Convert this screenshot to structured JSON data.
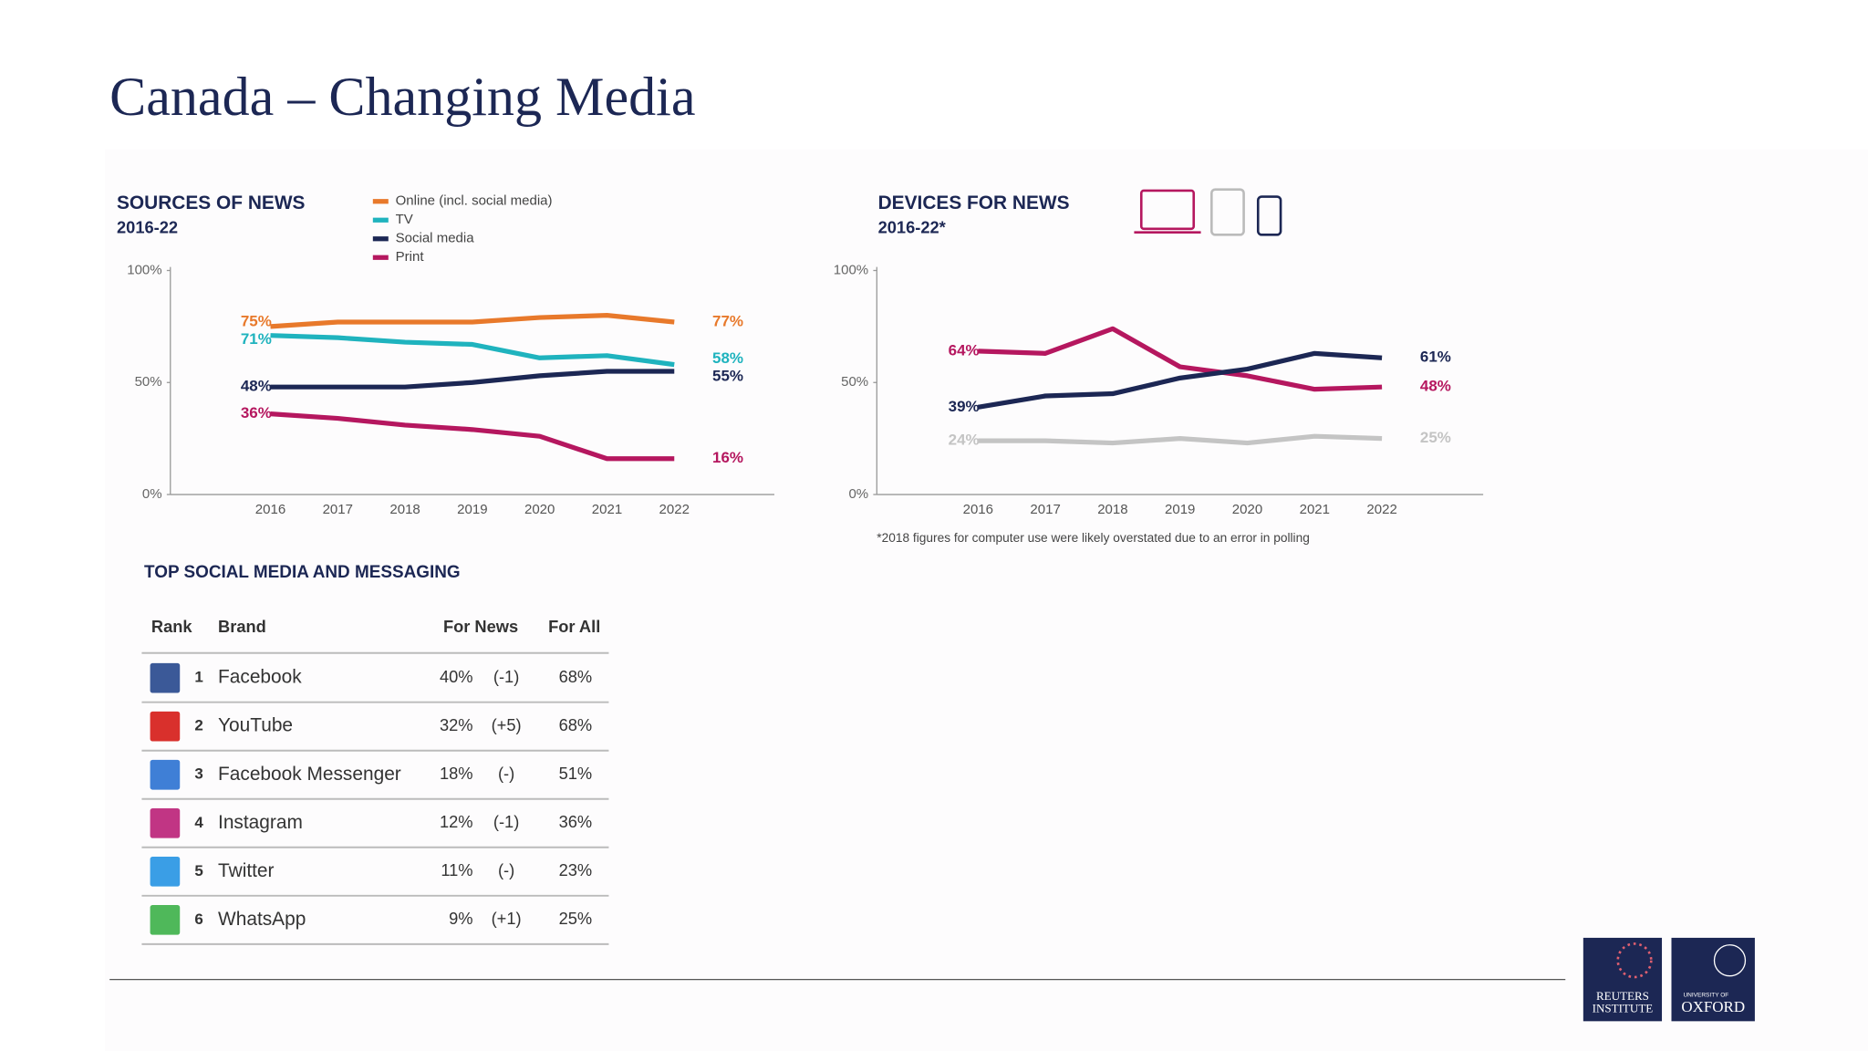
{
  "title": "Canada – Changing Media",
  "chart_data": [
    {
      "type": "line",
      "title": "SOURCES OF NEWS",
      "subtitle": "2016-22",
      "categories": [
        "2016",
        "2017",
        "2018",
        "2019",
        "2020",
        "2021",
        "2022"
      ],
      "ylim": [
        0,
        100
      ],
      "yticks": [
        {
          "value": 0,
          "label": "0%"
        },
        {
          "value": 50,
          "label": "50%"
        },
        {
          "value": 100,
          "label": "100%"
        }
      ],
      "series": [
        {
          "name": "Online (incl. social media)",
          "color": "#e8792b",
          "values": [
            75,
            77,
            77,
            77,
            79,
            80,
            77
          ],
          "value_labels": [
            "75%",
            null,
            null,
            null,
            null,
            null,
            "77%"
          ]
        },
        {
          "name": "TV",
          "color": "#1fb3be",
          "values": [
            71,
            70,
            68,
            67,
            61,
            62,
            58
          ],
          "value_labels": [
            "71%",
            null,
            null,
            null,
            null,
            null,
            "58%"
          ]
        },
        {
          "name": "Social media",
          "color": "#1c2754",
          "values": [
            48,
            48,
            48,
            50,
            53,
            55,
            55
          ],
          "value_labels": [
            "48%",
            null,
            null,
            null,
            null,
            null,
            "55%"
          ]
        },
        {
          "name": "Print",
          "color": "#b5175f",
          "values": [
            36,
            34,
            31,
            29,
            26,
            16,
            16
          ],
          "value_labels": [
            "36%",
            null,
            null,
            null,
            null,
            null,
            "16%"
          ]
        }
      ]
    },
    {
      "type": "line",
      "title": "DEVICES FOR NEWS",
      "subtitle": "2016-22*",
      "note": "*2018 figures for computer use were likely overstated due to an error in polling",
      "categories": [
        "2016",
        "2017",
        "2018",
        "2019",
        "2020",
        "2021",
        "2022"
      ],
      "ylim": [
        0,
        100
      ],
      "yticks": [
        {
          "value": 0,
          "label": "0%"
        },
        {
          "value": 50,
          "label": "50%"
        },
        {
          "value": 100,
          "label": "100%"
        }
      ],
      "series": [
        {
          "color": "#b5175f",
          "values": [
            64,
            63,
            74,
            57,
            53,
            47,
            48
          ],
          "value_labels": [
            "64%",
            null,
            null,
            null,
            null,
            null,
            "48%"
          ]
        },
        {
          "color": "#1c2754",
          "values": [
            39,
            44,
            45,
            52,
            56,
            63,
            61
          ],
          "value_labels": [
            "39%",
            null,
            null,
            null,
            null,
            null,
            "61%"
          ]
        },
        {
          "color": "#c4c4c4",
          "values": [
            24,
            24,
            23,
            25,
            23,
            26,
            25
          ],
          "value_labels": [
            "24%",
            null,
            null,
            null,
            null,
            null,
            "25%"
          ]
        }
      ]
    }
  ],
  "table": {
    "title": "TOP SOCIAL MEDIA AND MESSAGING",
    "headers": [
      "Rank",
      "Brand",
      "For News",
      "For All"
    ],
    "rows": [
      [
        "1",
        "Facebook",
        "40%",
        "(-1)",
        "68%"
      ],
      [
        "2",
        "YouTube",
        "32%",
        "(+5)",
        "68%"
      ],
      [
        "3",
        "Facebook Messenger",
        "18%",
        "(-)",
        "51%"
      ],
      [
        "4",
        "Instagram",
        "12%",
        "(-1)",
        "36%"
      ],
      [
        "5",
        "Twitter",
        "11%",
        "(-)",
        "23%"
      ],
      [
        "6",
        "WhatsApp",
        "9%",
        "(+1)",
        "25%"
      ]
    ]
  },
  "logos": {
    "reuters": [
      "REUTERS",
      "INSTITUTE"
    ],
    "oxford": [
      "UNIVERSITY OF",
      "OXFORD"
    ]
  }
}
